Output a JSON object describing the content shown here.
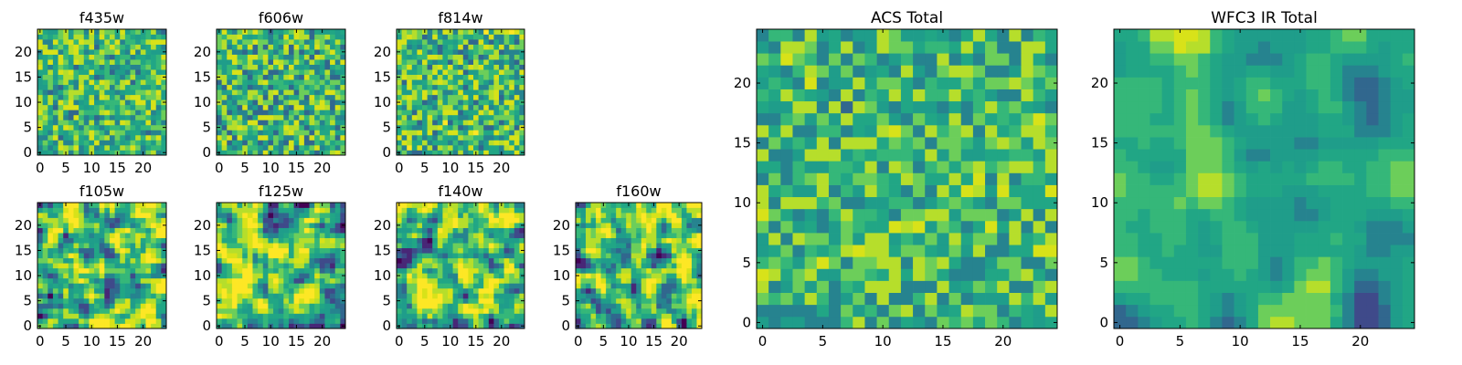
{
  "figure": {
    "description_panels": 9,
    "colormap": [
      "#440154",
      "#482777",
      "#3f4a8a",
      "#31678e",
      "#26838f",
      "#1f9d8a",
      "#21a685",
      "#35b779",
      "#6cce5a",
      "#b6de2b",
      "#d8e219",
      "#fde725"
    ]
  },
  "chart_data": [
    {
      "type": "heatmap",
      "title": "f435w",
      "grid": [
        25,
        25
      ],
      "xticks": [
        "0",
        "5",
        "10",
        "15",
        "20"
      ],
      "yticks": [
        "0",
        "5",
        "10",
        "15",
        "20"
      ],
      "xlim": [
        0,
        25
      ],
      "ylim": [
        0,
        25
      ],
      "seed": 11,
      "smooth": 0,
      "bias": 0.62,
      "contrast": 0.18
    },
    {
      "type": "heatmap",
      "title": "f606w",
      "grid": [
        25,
        25
      ],
      "xticks": [
        "0",
        "5",
        "10",
        "15",
        "20"
      ],
      "yticks": [
        "0",
        "5",
        "10",
        "15",
        "20"
      ],
      "xlim": [
        0,
        25
      ],
      "ylim": [
        0,
        25
      ],
      "seed": 23,
      "smooth": 0,
      "bias": 0.6,
      "contrast": 0.2
    },
    {
      "type": "heatmap",
      "title": "f814w",
      "grid": [
        25,
        25
      ],
      "xticks": [
        "0",
        "5",
        "10",
        "15",
        "20"
      ],
      "yticks": [
        "0",
        "5",
        "10",
        "15",
        "20"
      ],
      "xlim": [
        0,
        25
      ],
      "ylim": [
        0,
        25
      ],
      "seed": 37,
      "smooth": 0,
      "bias": 0.62,
      "contrast": 0.2
    },
    {
      "type": "heatmap",
      "title": "f105w",
      "grid": [
        25,
        25
      ],
      "xticks": [
        "0",
        "5",
        "10",
        "15",
        "20"
      ],
      "yticks": [
        "0",
        "5",
        "10",
        "15",
        "20"
      ],
      "xlim": [
        0,
        25
      ],
      "ylim": [
        0,
        25
      ],
      "seed": 41,
      "smooth": 1,
      "bias": 0.64,
      "contrast": 0.25
    },
    {
      "type": "heatmap",
      "title": "f125w",
      "grid": [
        25,
        25
      ],
      "xticks": [
        "0",
        "5",
        "10",
        "15",
        "20"
      ],
      "yticks": [
        "0",
        "5",
        "10",
        "15",
        "20"
      ],
      "xlim": [
        0,
        25
      ],
      "ylim": [
        0,
        25
      ],
      "seed": 53,
      "smooth": 1,
      "bias": 0.63,
      "contrast": 0.26
    },
    {
      "type": "heatmap",
      "title": "f140w",
      "grid": [
        25,
        25
      ],
      "xticks": [
        "0",
        "5",
        "10",
        "15",
        "20"
      ],
      "yticks": [
        "0",
        "5",
        "10",
        "15",
        "20"
      ],
      "xlim": [
        0,
        25
      ],
      "ylim": [
        0,
        25
      ],
      "seed": 67,
      "smooth": 1,
      "bias": 0.64,
      "contrast": 0.25
    },
    {
      "type": "heatmap",
      "title": "f160w",
      "grid": [
        25,
        25
      ],
      "xticks": [
        "0",
        "5",
        "10",
        "15",
        "20"
      ],
      "yticks": [
        "0",
        "5",
        "10",
        "15",
        "20"
      ],
      "xlim": [
        0,
        25
      ],
      "ylim": [
        0,
        25
      ],
      "seed": 79,
      "smooth": 1,
      "bias": 0.64,
      "contrast": 0.25
    },
    {
      "type": "heatmap",
      "title": "ACS Total",
      "grid": [
        25,
        25
      ],
      "xticks": [
        "0",
        "5",
        "10",
        "15",
        "20"
      ],
      "yticks": [
        "0",
        "5",
        "10",
        "15",
        "20"
      ],
      "xlim": [
        0,
        25
      ],
      "ylim": [
        0,
        25
      ],
      "seed": 97,
      "smooth": 0,
      "bias": 0.6,
      "contrast": 0.17
    },
    {
      "type": "heatmap",
      "title": "WFC3 IR Total",
      "grid": [
        25,
        25
      ],
      "xticks": [
        "0",
        "5",
        "10",
        "15",
        "20"
      ],
      "yticks": [
        "0",
        "5",
        "10",
        "15",
        "20"
      ],
      "xlim": [
        0,
        25
      ],
      "ylim": [
        0,
        25
      ],
      "seed": 131,
      "smooth": 2,
      "bias": 0.55,
      "contrast": 0.12
    }
  ]
}
